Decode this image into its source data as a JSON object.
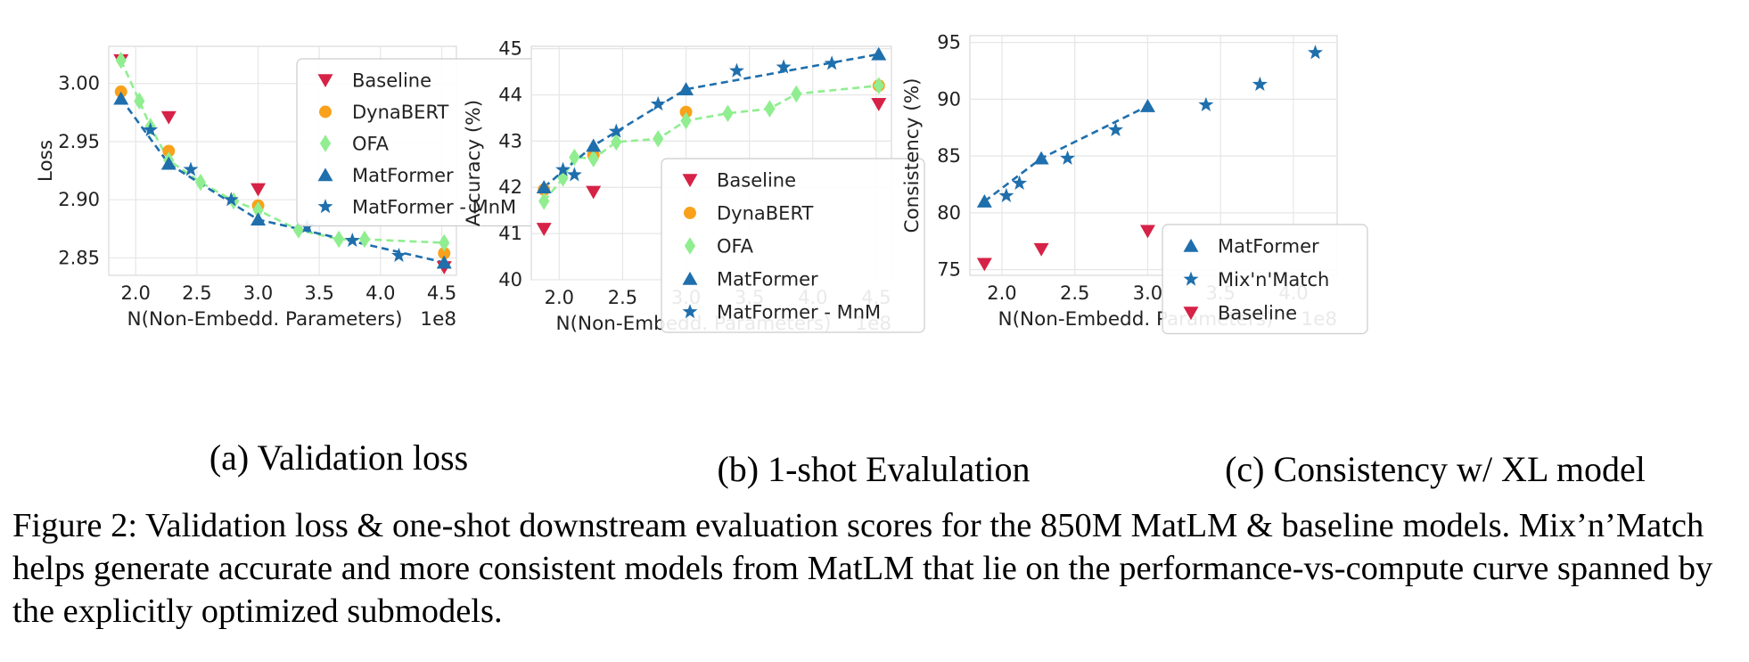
{
  "chart_data": [
    {
      "type": "scatter",
      "xlabel": "N(Non-Embedd. Parameters)",
      "ylabel": "Loss",
      "x_exponent": "1e8",
      "xlim": [
        1.78,
        4.62
      ],
      "ylim": [
        2.835,
        3.032
      ],
      "xticks": [
        "2.0",
        "2.5",
        "3.0",
        "3.5",
        "4.0",
        "4.5"
      ],
      "yticks": [
        "2.85",
        "2.90",
        "2.95",
        "3.00"
      ],
      "grid": true,
      "legend_position": "top-right",
      "series": [
        {
          "name": "Baseline",
          "marker": "triangle-down",
          "color": "#d62246",
          "line": false,
          "points": [
            [
              1.88,
              3.02
            ],
            [
              2.27,
              2.971
            ],
            [
              3.0,
              2.909
            ],
            [
              4.52,
              2.842
            ]
          ]
        },
        {
          "name": "DynaBERT",
          "marker": "circle",
          "color": "#f9a11b",
          "line": false,
          "points": [
            [
              1.88,
              2.993
            ],
            [
              2.27,
              2.942
            ],
            [
              3.0,
              2.895
            ],
            [
              4.52,
              2.854
            ]
          ]
        },
        {
          "name": "OFA",
          "marker": "diamond",
          "color": "#90ee90",
          "line": true,
          "dashed": true,
          "points": [
            [
              1.88,
              3.02
            ],
            [
              2.03,
              2.985
            ],
            [
              2.12,
              2.963
            ],
            [
              2.27,
              2.934
            ],
            [
              2.53,
              2.915
            ],
            [
              2.8,
              2.899
            ],
            [
              3.0,
              2.891
            ],
            [
              3.33,
              2.874
            ],
            [
              3.66,
              2.866
            ],
            [
              3.87,
              2.866
            ],
            [
              4.52,
              2.863
            ]
          ]
        },
        {
          "name": "MatFormer",
          "marker": "triangle-up",
          "color": "#1f6fad",
          "line": true,
          "dashed": true,
          "points": [
            [
              1.88,
              2.987
            ],
            [
              2.27,
              2.931
            ],
            [
              3.0,
              2.883
            ],
            [
              4.52,
              2.846
            ]
          ]
        },
        {
          "name": "MatFormer - MnM",
          "marker": "star",
          "color": "#1f6fad",
          "line": false,
          "points": [
            [
              2.12,
              2.96
            ],
            [
              2.45,
              2.926
            ],
            [
              2.78,
              2.9
            ],
            [
              3.4,
              2.877
            ],
            [
              3.77,
              2.865
            ],
            [
              4.15,
              2.852
            ]
          ]
        }
      ]
    },
    {
      "type": "scatter",
      "xlabel": "N(Non-Embedd. Parameters)",
      "ylabel": "Accuracy (%)",
      "x_exponent": "1e8",
      "xlim": [
        1.78,
        4.62
      ],
      "ylim": [
        40.0,
        45.05
      ],
      "xticks": [
        "2.0",
        "2.5",
        "3.0",
        "3.5",
        "4.0",
        "4.5"
      ],
      "yticks": [
        "40",
        "41",
        "42",
        "43",
        "44",
        "45"
      ],
      "grid": true,
      "legend_position": "lower-right",
      "series": [
        {
          "name": "Baseline",
          "marker": "triangle-down",
          "color": "#d62246",
          "line": false,
          "points": [
            [
              1.88,
              41.1
            ],
            [
              2.27,
              41.9
            ],
            [
              4.52,
              43.8
            ]
          ]
        },
        {
          "name": "DynaBERT",
          "marker": "circle",
          "color": "#f9a11b",
          "line": false,
          "points": [
            [
              1.88,
              41.95
            ],
            [
              2.27,
              42.7
            ],
            [
              3.0,
              43.63
            ],
            [
              4.52,
              44.2
            ]
          ]
        },
        {
          "name": "OFA",
          "marker": "diamond",
          "color": "#90ee90",
          "line": true,
          "dashed": true,
          "points": [
            [
              1.88,
              41.7
            ],
            [
              2.03,
              42.2
            ],
            [
              2.12,
              42.65
            ],
            [
              2.27,
              42.62
            ],
            [
              2.45,
              42.98
            ],
            [
              2.78,
              43.05
            ],
            [
              3.0,
              43.44
            ],
            [
              3.33,
              43.6
            ],
            [
              3.66,
              43.7
            ],
            [
              3.87,
              44.02
            ],
            [
              4.52,
              44.2
            ]
          ]
        },
        {
          "name": "MatFormer",
          "marker": "triangle-up",
          "color": "#1f6fad",
          "line": true,
          "dashed": true,
          "points": [
            [
              1.88,
              42.0
            ],
            [
              2.27,
              42.9
            ],
            [
              3.0,
              44.12
            ],
            [
              4.52,
              44.88
            ]
          ]
        },
        {
          "name": "MatFormer - MnM",
          "marker": "star",
          "color": "#1f6fad",
          "line": false,
          "points": [
            [
              2.03,
              42.38
            ],
            [
              2.12,
              42.27
            ],
            [
              2.45,
              43.21
            ],
            [
              2.78,
              43.8
            ],
            [
              3.4,
              44.52
            ],
            [
              3.77,
              44.6
            ],
            [
              4.15,
              44.68
            ]
          ]
        }
      ]
    },
    {
      "type": "scatter",
      "xlabel": "N(Non-Embedd. Parameters)",
      "ylabel": "Consistency (%)",
      "x_exponent": "1e8",
      "xlim": [
        1.78,
        4.3
      ],
      "ylim": [
        74.5,
        95.6
      ],
      "xticks": [
        "2.0",
        "2.5",
        "3.0",
        "3.5",
        "4.0"
      ],
      "yticks": [
        "75",
        "80",
        "85",
        "90",
        "95"
      ],
      "grid": true,
      "legend_position": "lower-right",
      "series": [
        {
          "name": "MatFormer",
          "marker": "triangle-up",
          "color": "#1f6fad",
          "line": true,
          "dashed": true,
          "points": [
            [
              1.88,
              81.0
            ],
            [
              2.27,
              84.8
            ],
            [
              3.0,
              89.4
            ]
          ]
        },
        {
          "name": "Mix'n'Match",
          "marker": "star",
          "color": "#1f6fad",
          "line": false,
          "points": [
            [
              2.03,
              81.5
            ],
            [
              2.12,
              82.6
            ],
            [
              2.45,
              84.8
            ],
            [
              2.78,
              87.3
            ],
            [
              3.4,
              89.5
            ],
            [
              3.77,
              91.3
            ],
            [
              4.15,
              94.1
            ]
          ]
        },
        {
          "name": "Baseline",
          "marker": "triangle-down",
          "color": "#d62246",
          "line": false,
          "points": [
            [
              1.88,
              75.5
            ],
            [
              2.27,
              76.8
            ],
            [
              3.0,
              78.4
            ]
          ]
        }
      ]
    }
  ],
  "subcaptions": [
    "(a) Validation loss",
    "(b) 1-shot Evalulation",
    "(c) Consistency w/ XL model"
  ],
  "caption": "Figure 2: Validation loss & one-shot downstream evaluation scores for the 850M MatLM & baseline models. Mix’n’Match helps generate accurate and more consistent models from MatLM that lie on the performance-vs-compute curve spanned by the explicitly optimized submodels."
}
